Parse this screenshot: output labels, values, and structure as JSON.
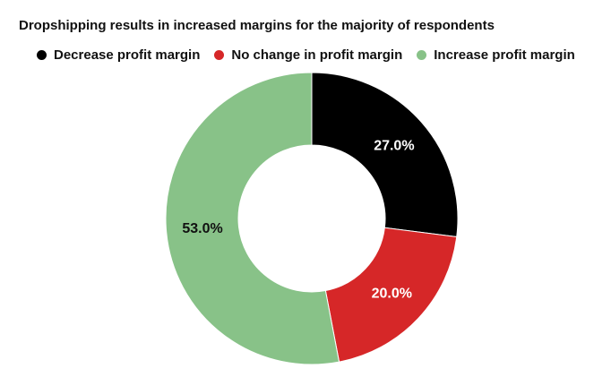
{
  "chart_data": {
    "type": "pie",
    "variant": "donut",
    "title": "Dropshipping results in increased margins for the majority of respondents",
    "legend_position": "top-left",
    "slices": [
      {
        "label": "Decrease profit margin",
        "value": 27.0,
        "display": "27.0%",
        "color": "#000000",
        "label_color": "#ffffff"
      },
      {
        "label": "No change in profit margin",
        "value": 20.0,
        "display": "20.0%",
        "color": "#d62728",
        "label_color": "#ffffff"
      },
      {
        "label": "Increase profit margin",
        "value": 53.0,
        "display": "53.0%",
        "color": "#88c288",
        "label_color": "#111111"
      }
    ]
  }
}
